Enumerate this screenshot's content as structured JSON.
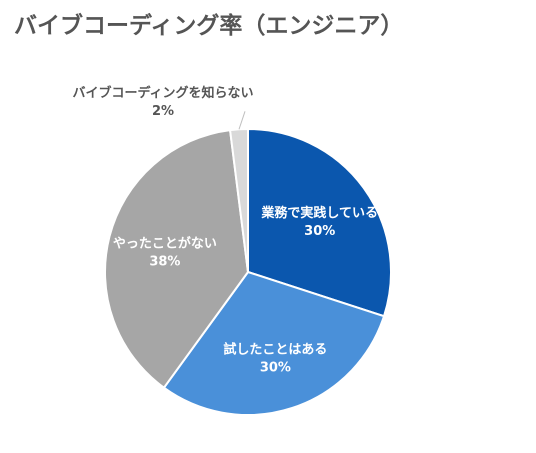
{
  "chart_data": {
    "type": "pie",
    "title": "バイブコーディング率（エンジニア）",
    "slices": [
      {
        "label": "業務で実践している",
        "value": 30,
        "value_label": "30%",
        "color": "#0B57AE"
      },
      {
        "label": "試したことはある",
        "value": 30,
        "value_label": "30%",
        "color": "#4A90D9"
      },
      {
        "label": "やったことがない",
        "value": 38,
        "value_label": "38%",
        "color": "#A6A6A6"
      },
      {
        "label": "バイブコーディングを知らない",
        "value": 2,
        "value_label": "2%",
        "color": "#D9D9D9"
      }
    ],
    "start": "12 o'clock",
    "direction": "clockwise",
    "legend": "none"
  }
}
